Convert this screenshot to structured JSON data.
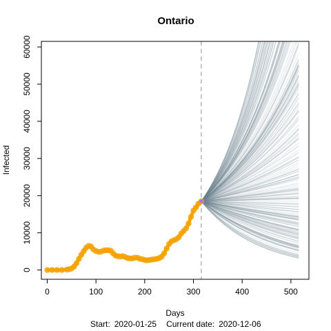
{
  "chart_data": {
    "type": "line",
    "title": "Ontario",
    "xlabel": "Days",
    "ylabel": "Infected",
    "footer": {
      "start_label": "Start:",
      "start_date": "2020-01-25",
      "current_label": "Current date:",
      "current_date": "2020-12-06"
    },
    "xlim": [
      -12,
      537
    ],
    "ylim": [
      -2500,
      61500
    ],
    "x_ticks": [
      0,
      100,
      200,
      300,
      400,
      500
    ],
    "y_ticks": [
      0,
      10000,
      20000,
      30000,
      40000,
      50000,
      60000
    ],
    "grid": false,
    "current_day": 316,
    "projection_end_day": 516,
    "colors": {
      "observed": "#f5a300",
      "projection": "#6f8591",
      "current_line": "#b3b3b3",
      "current_point": "#9a7bd6"
    },
    "series": [
      {
        "x": [
          0,
          10,
          20,
          30,
          40,
          45,
          50,
          55,
          60,
          65,
          70,
          75,
          80,
          85,
          90,
          95,
          100,
          105,
          110,
          115,
          120,
          125,
          130,
          135,
          140,
          145,
          150,
          155,
          160,
          165,
          170,
          175,
          180,
          185,
          190,
          195,
          200,
          205,
          210,
          215,
          220,
          225,
          230,
          235,
          240,
          245,
          250,
          255,
          260,
          265,
          270,
          275,
          280,
          285,
          290,
          295,
          300,
          305,
          310,
          316
        ],
        "y": [
          0,
          0,
          0,
          0,
          100,
          200,
          400,
          900,
          1800,
          3000,
          4100,
          5100,
          6000,
          6500,
          6300,
          5500,
          5100,
          4900,
          4900,
          5200,
          5300,
          5300,
          5200,
          4500,
          3900,
          3700,
          3600,
          3700,
          3500,
          3200,
          3100,
          3100,
          3300,
          3300,
          3000,
          2900,
          2700,
          2600,
          2700,
          2800,
          2900,
          3000,
          3200,
          3600,
          4500,
          5800,
          7000,
          7700,
          8000,
          8300,
          8800,
          9800,
          10500,
          11200,
          12500,
          14300,
          16000,
          16800,
          17800,
          18500
        ]
      }
    ],
    "projection_summary": {
      "start_value": 18500,
      "end_value_min": 3000,
      "end_value_max": 60000,
      "trajectory_count": 300
    }
  }
}
